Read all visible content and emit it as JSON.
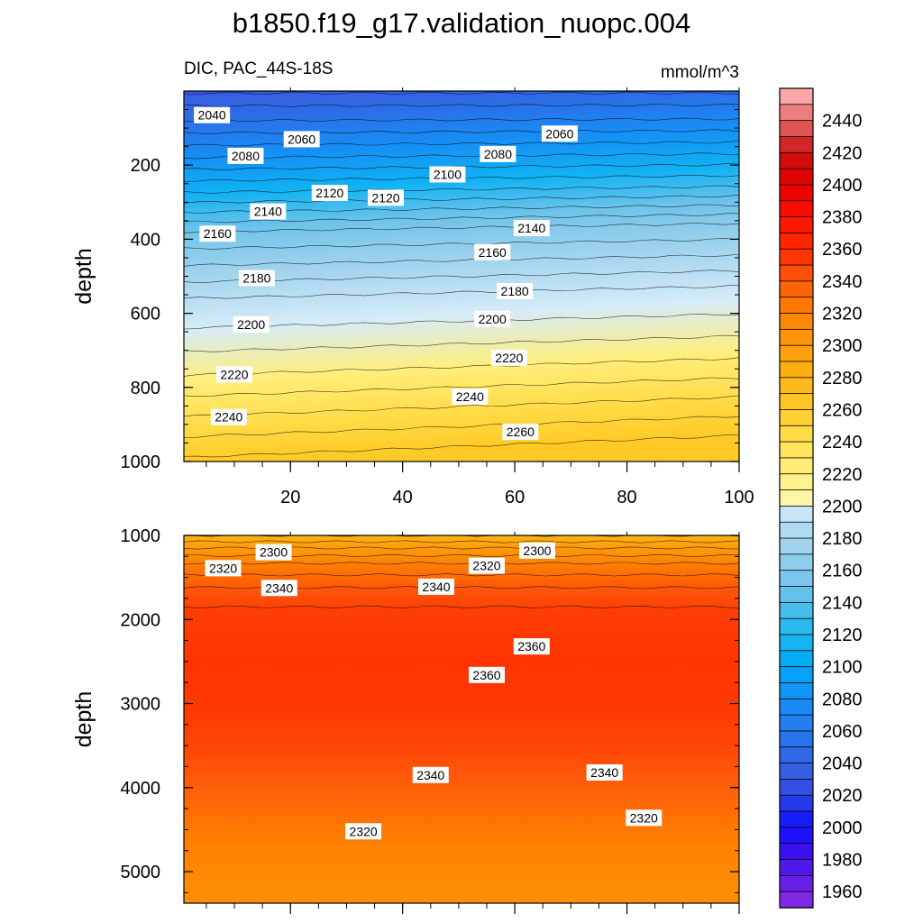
{
  "chart_data": {
    "type": "heatmap",
    "title": "b1850.f19_g17.validation_nuopc.004",
    "variable_label": "DIC, PAC_44S-18S",
    "units_label": "mmol/m^3",
    "shared_x_ticks": [
      20,
      40,
      60,
      80,
      100
    ],
    "xlim": [
      1,
      100
    ],
    "panels": [
      {
        "name": "upper",
        "ylabel": "depth",
        "ylim": [
          1000,
          0
        ],
        "y_ticks": [
          200,
          400,
          600,
          800,
          1000
        ],
        "depth_profile": [
          {
            "depth": 0,
            "value": 2028
          },
          {
            "depth": 20,
            "value": 2035
          },
          {
            "depth": 80,
            "value": 2050
          },
          {
            "depth": 180,
            "value": 2080
          },
          {
            "depth": 280,
            "value": 2112
          },
          {
            "depth": 380,
            "value": 2150
          },
          {
            "depth": 480,
            "value": 2172
          },
          {
            "depth": 560,
            "value": 2190
          },
          {
            "depth": 640,
            "value": 2200
          },
          {
            "depth": 780,
            "value": 2222
          },
          {
            "depth": 900,
            "value": 2244
          },
          {
            "depth": 1000,
            "value": 2262
          }
        ],
        "gradient_x": 35,
        "contour_labels": [
          {
            "x": 6,
            "depth": 65,
            "text": "2040"
          },
          {
            "x": 22,
            "depth": 130,
            "text": "2060"
          },
          {
            "x": 68,
            "depth": 115,
            "text": "2060"
          },
          {
            "x": 12,
            "depth": 175,
            "text": "2080"
          },
          {
            "x": 57,
            "depth": 170,
            "text": "2080"
          },
          {
            "x": 48,
            "depth": 225,
            "text": "2100"
          },
          {
            "x": 27,
            "depth": 275,
            "text": "2120"
          },
          {
            "x": 37,
            "depth": 288,
            "text": "2120"
          },
          {
            "x": 16,
            "depth": 325,
            "text": "2140"
          },
          {
            "x": 63,
            "depth": 370,
            "text": "2140"
          },
          {
            "x": 7,
            "depth": 385,
            "text": "2160"
          },
          {
            "x": 56,
            "depth": 435,
            "text": "2160"
          },
          {
            "x": 14,
            "depth": 505,
            "text": "2180"
          },
          {
            "x": 60,
            "depth": 540,
            "text": "2180"
          },
          {
            "x": 13,
            "depth": 630,
            "text": "2200"
          },
          {
            "x": 56,
            "depth": 615,
            "text": "2200"
          },
          {
            "x": 10,
            "depth": 765,
            "text": "2220"
          },
          {
            "x": 59,
            "depth": 720,
            "text": "2220"
          },
          {
            "x": 52,
            "depth": 825,
            "text": "2240"
          },
          {
            "x": 9,
            "depth": 880,
            "text": "2240"
          },
          {
            "x": 61,
            "depth": 920,
            "text": "2260"
          }
        ]
      },
      {
        "name": "lower",
        "ylabel": "depth",
        "ylim": [
          5375,
          1000
        ],
        "y_ticks": [
          1000,
          2000,
          3000,
          4000,
          5000
        ],
        "depth_profile": [
          {
            "depth": 1000,
            "value": 2280
          },
          {
            "depth": 1150,
            "value": 2300
          },
          {
            "depth": 1350,
            "value": 2322
          },
          {
            "depth": 1650,
            "value": 2342
          },
          {
            "depth": 1900,
            "value": 2352
          },
          {
            "depth": 2500,
            "value": 2356
          },
          {
            "depth": 3000,
            "value": 2354
          },
          {
            "depth": 3450,
            "value": 2349
          },
          {
            "depth": 3900,
            "value": 2340
          },
          {
            "depth": 4300,
            "value": 2330
          },
          {
            "depth": 4700,
            "value": 2320
          },
          {
            "depth": 5375,
            "value": 2308
          }
        ],
        "contour_labels": [
          {
            "x": 17,
            "depth": 1200,
            "text": "2300"
          },
          {
            "x": 64,
            "depth": 1180,
            "text": "2300"
          },
          {
            "x": 8,
            "depth": 1390,
            "text": "2320"
          },
          {
            "x": 55,
            "depth": 1360,
            "text": "2320"
          },
          {
            "x": 18,
            "depth": 1625,
            "text": "2340"
          },
          {
            "x": 46,
            "depth": 1610,
            "text": "2340"
          },
          {
            "x": 63,
            "depth": 2320,
            "text": "2360"
          },
          {
            "x": 55,
            "depth": 2660,
            "text": "2360"
          },
          {
            "x": 45,
            "depth": 3850,
            "text": "2340"
          },
          {
            "x": 76,
            "depth": 3820,
            "text": "2340"
          },
          {
            "x": 33,
            "depth": 4520,
            "text": "2320"
          },
          {
            "x": 83,
            "depth": 4360,
            "text": "2320"
          }
        ]
      }
    ],
    "colorbar": {
      "labels": [
        2440,
        2420,
        2400,
        2380,
        2360,
        2340,
        2320,
        2300,
        2280,
        2260,
        2240,
        2220,
        2200,
        2180,
        2160,
        2140,
        2120,
        2100,
        2080,
        2060,
        2040,
        2020,
        2000,
        1980,
        1960
      ],
      "range": [
        1950,
        2460
      ],
      "step": 10,
      "color_stops": [
        {
          "value": 1950,
          "color": "#8a2be2"
        },
        {
          "value": 1985,
          "color": "#3a10f0"
        },
        {
          "value": 2000,
          "color": "#1010ff"
        },
        {
          "value": 2010,
          "color": "#1c2cf0"
        },
        {
          "value": 2030,
          "color": "#3a5ae0"
        },
        {
          "value": 2050,
          "color": "#2c6ee8"
        },
        {
          "value": 2080,
          "color": "#1590f5"
        },
        {
          "value": 2100,
          "color": "#00a8f8"
        },
        {
          "value": 2120,
          "color": "#1ab8f0"
        },
        {
          "value": 2150,
          "color": "#72c4ea"
        },
        {
          "value": 2170,
          "color": "#98d0ec"
        },
        {
          "value": 2190,
          "color": "#b8def2"
        },
        {
          "value": 2200,
          "color": "#d6ecf8"
        },
        {
          "value": 2201,
          "color": "#fff6b0"
        },
        {
          "value": 2220,
          "color": "#fff080"
        },
        {
          "value": 2240,
          "color": "#ffe050"
        },
        {
          "value": 2260,
          "color": "#ffcc28"
        },
        {
          "value": 2280,
          "color": "#ffb414"
        },
        {
          "value": 2300,
          "color": "#ff9a0a"
        },
        {
          "value": 2320,
          "color": "#ff8200"
        },
        {
          "value": 2340,
          "color": "#ff5a0a"
        },
        {
          "value": 2360,
          "color": "#ff2a00"
        },
        {
          "value": 2380,
          "color": "#ff1000"
        },
        {
          "value": 2400,
          "color": "#e40000"
        },
        {
          "value": 2420,
          "color": "#cc1010"
        },
        {
          "value": 2440,
          "color": "#e86a6a"
        },
        {
          "value": 2460,
          "color": "#ffbaba"
        }
      ]
    }
  }
}
